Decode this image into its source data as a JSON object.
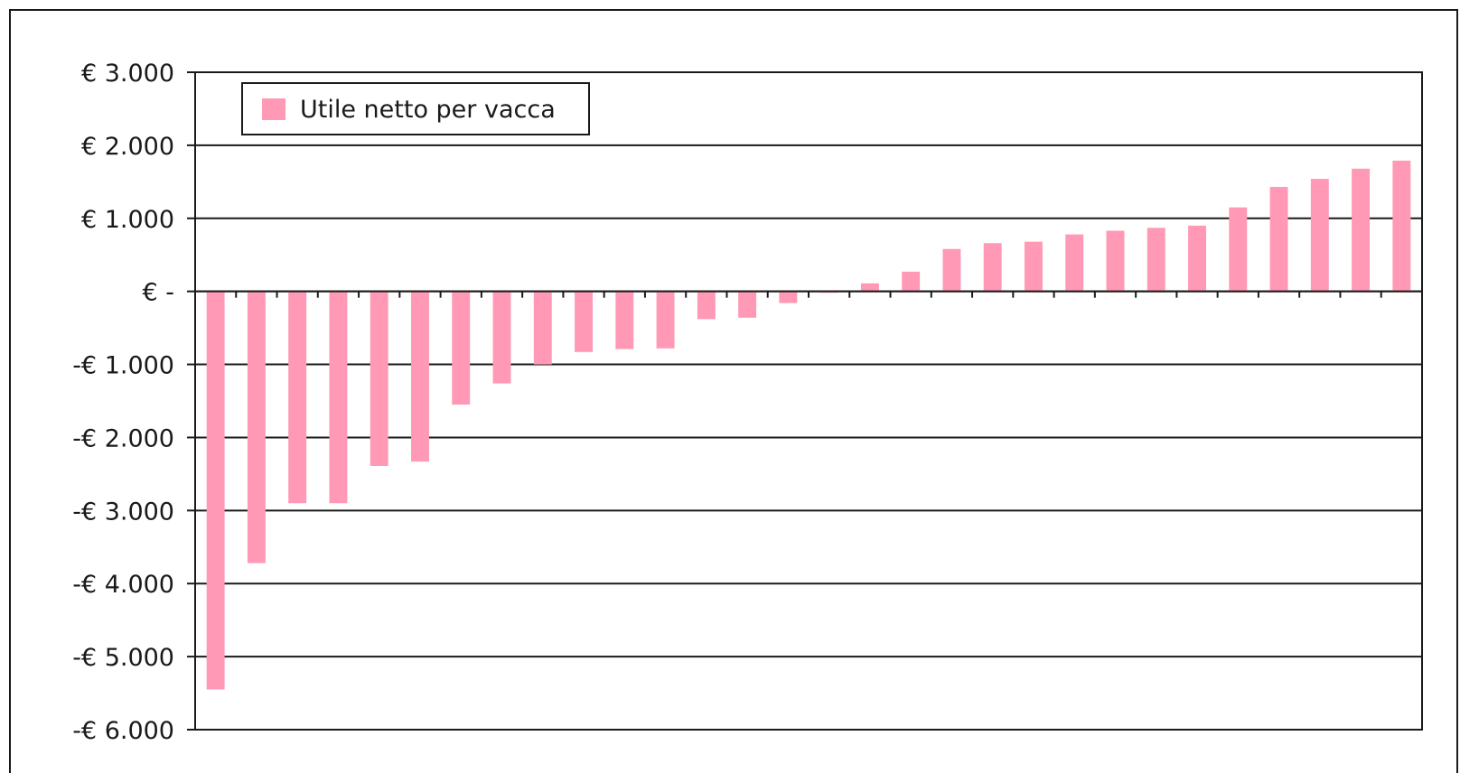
{
  "chart_data": {
    "type": "bar",
    "series": [
      {
        "name": "Utile netto per vacca",
        "color": "#ff99b5",
        "values": [
          -5450,
          -3720,
          -2900,
          -2900,
          -2390,
          -2330,
          -1550,
          -1260,
          -1000,
          -830,
          -790,
          -780,
          -380,
          -360,
          -160,
          -20,
          110,
          270,
          580,
          660,
          680,
          780,
          830,
          870,
          900,
          1150,
          1430,
          1540,
          1680,
          1790
        ]
      }
    ],
    "ylim": [
      -6000,
      3000
    ],
    "yticks": [
      3000,
      2000,
      1000,
      0,
      -1000,
      -2000,
      -3000,
      -4000,
      -5000,
      -6000
    ],
    "ytick_labels": [
      "€ 3.000",
      "€ 2.000",
      "€ 1.000",
      "€ -",
      "-€ 1.000",
      "-€ 2.000",
      "-€ 3.000",
      "-€ 4.000",
      "-€ 5.000",
      "-€ 6.000"
    ],
    "grid": true,
    "legend_position": "top-left"
  }
}
